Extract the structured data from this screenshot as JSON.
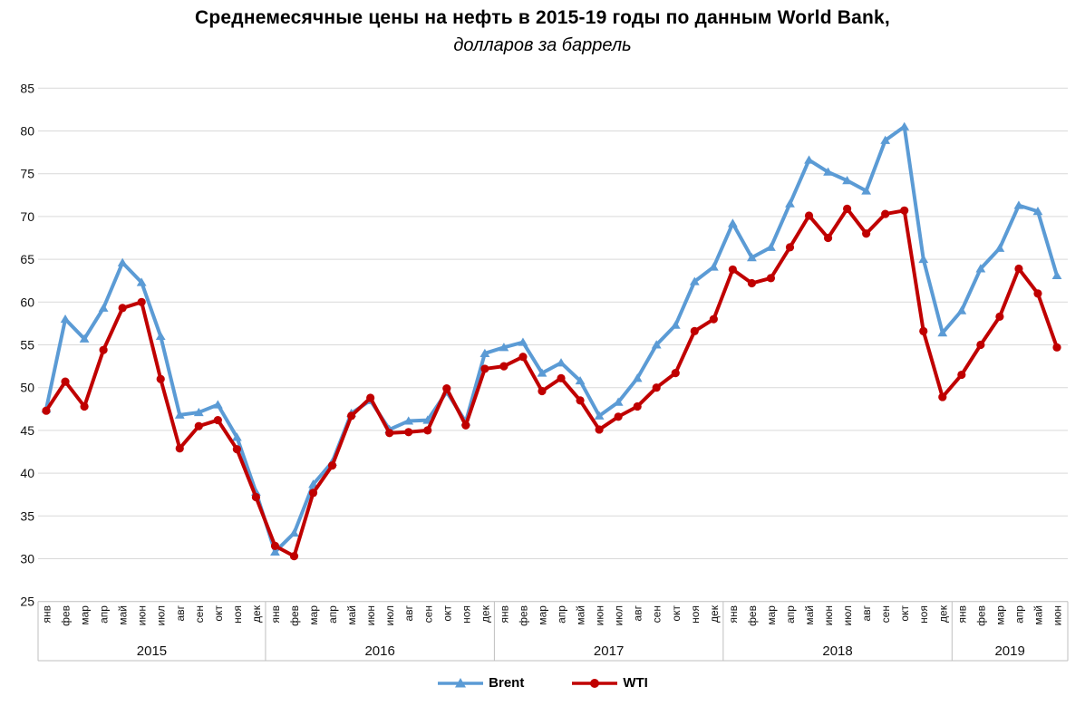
{
  "header": {
    "title": "Среднемесячные цены на нефть в 2015-19 годы по данным World Bank,",
    "subtitle": "долларов за баррель"
  },
  "chart_data": {
    "type": "line",
    "title": "Среднемесячные цены на нефть в 2015-19 годы по данным World Bank,",
    "subtitle": "долларов за баррель",
    "ylim": [
      25,
      85
    ],
    "ytick_step": 5,
    "grid": true,
    "legend_position": "bottom",
    "colors": {
      "grid": "#D9D9D9",
      "axis": "#BFBFBF",
      "label": "#111111"
    },
    "month_names": [
      "янв",
      "фев",
      "мар",
      "апр",
      "май",
      "июн",
      "июл",
      "авг",
      "сен",
      "окт",
      "ноя",
      "дек"
    ],
    "year_groups": [
      {
        "year": "2015",
        "months": 12
      },
      {
        "year": "2016",
        "months": 12
      },
      {
        "year": "2017",
        "months": 12
      },
      {
        "year": "2018",
        "months": 12
      },
      {
        "year": "2019",
        "months": 6
      }
    ],
    "series": [
      {
        "name": "Brent",
        "color": "#5B9BD5",
        "marker": "triangle",
        "values": [
          47.5,
          58.0,
          55.7,
          59.3,
          64.6,
          62.3,
          56.0,
          46.8,
          47.1,
          48.0,
          44.2,
          37.8,
          30.8,
          33.0,
          38.7,
          41.3,
          47.0,
          48.5,
          45.1,
          46.1,
          46.2,
          49.5,
          46.0,
          54.0,
          54.7,
          55.3,
          51.7,
          52.9,
          50.8,
          46.7,
          48.3,
          51.1,
          55.0,
          57.3,
          62.4,
          64.1,
          69.2,
          65.2,
          66.4,
          71.5,
          76.6,
          75.2,
          74.2,
          73.0,
          78.9,
          80.5,
          65.0,
          56.4,
          59.0,
          63.9,
          66.3,
          71.3,
          70.6,
          63.1
        ]
      },
      {
        "name": "WTI",
        "color": "#C00000",
        "marker": "circle",
        "values": [
          47.3,
          50.7,
          47.8,
          54.4,
          59.3,
          60.0,
          51.0,
          42.9,
          45.5,
          46.2,
          42.8,
          37.2,
          31.5,
          30.3,
          37.7,
          40.9,
          46.7,
          48.8,
          44.7,
          44.8,
          45.0,
          49.9,
          45.6,
          52.2,
          52.5,
          53.6,
          49.6,
          51.1,
          48.5,
          45.1,
          46.6,
          47.8,
          50.0,
          51.7,
          56.6,
          58.0,
          63.8,
          62.2,
          62.8,
          66.4,
          70.1,
          67.5,
          70.9,
          68.0,
          70.3,
          70.7,
          56.6,
          48.9,
          51.5,
          55.0,
          58.3,
          63.9,
          61.0,
          54.7
        ]
      }
    ]
  }
}
